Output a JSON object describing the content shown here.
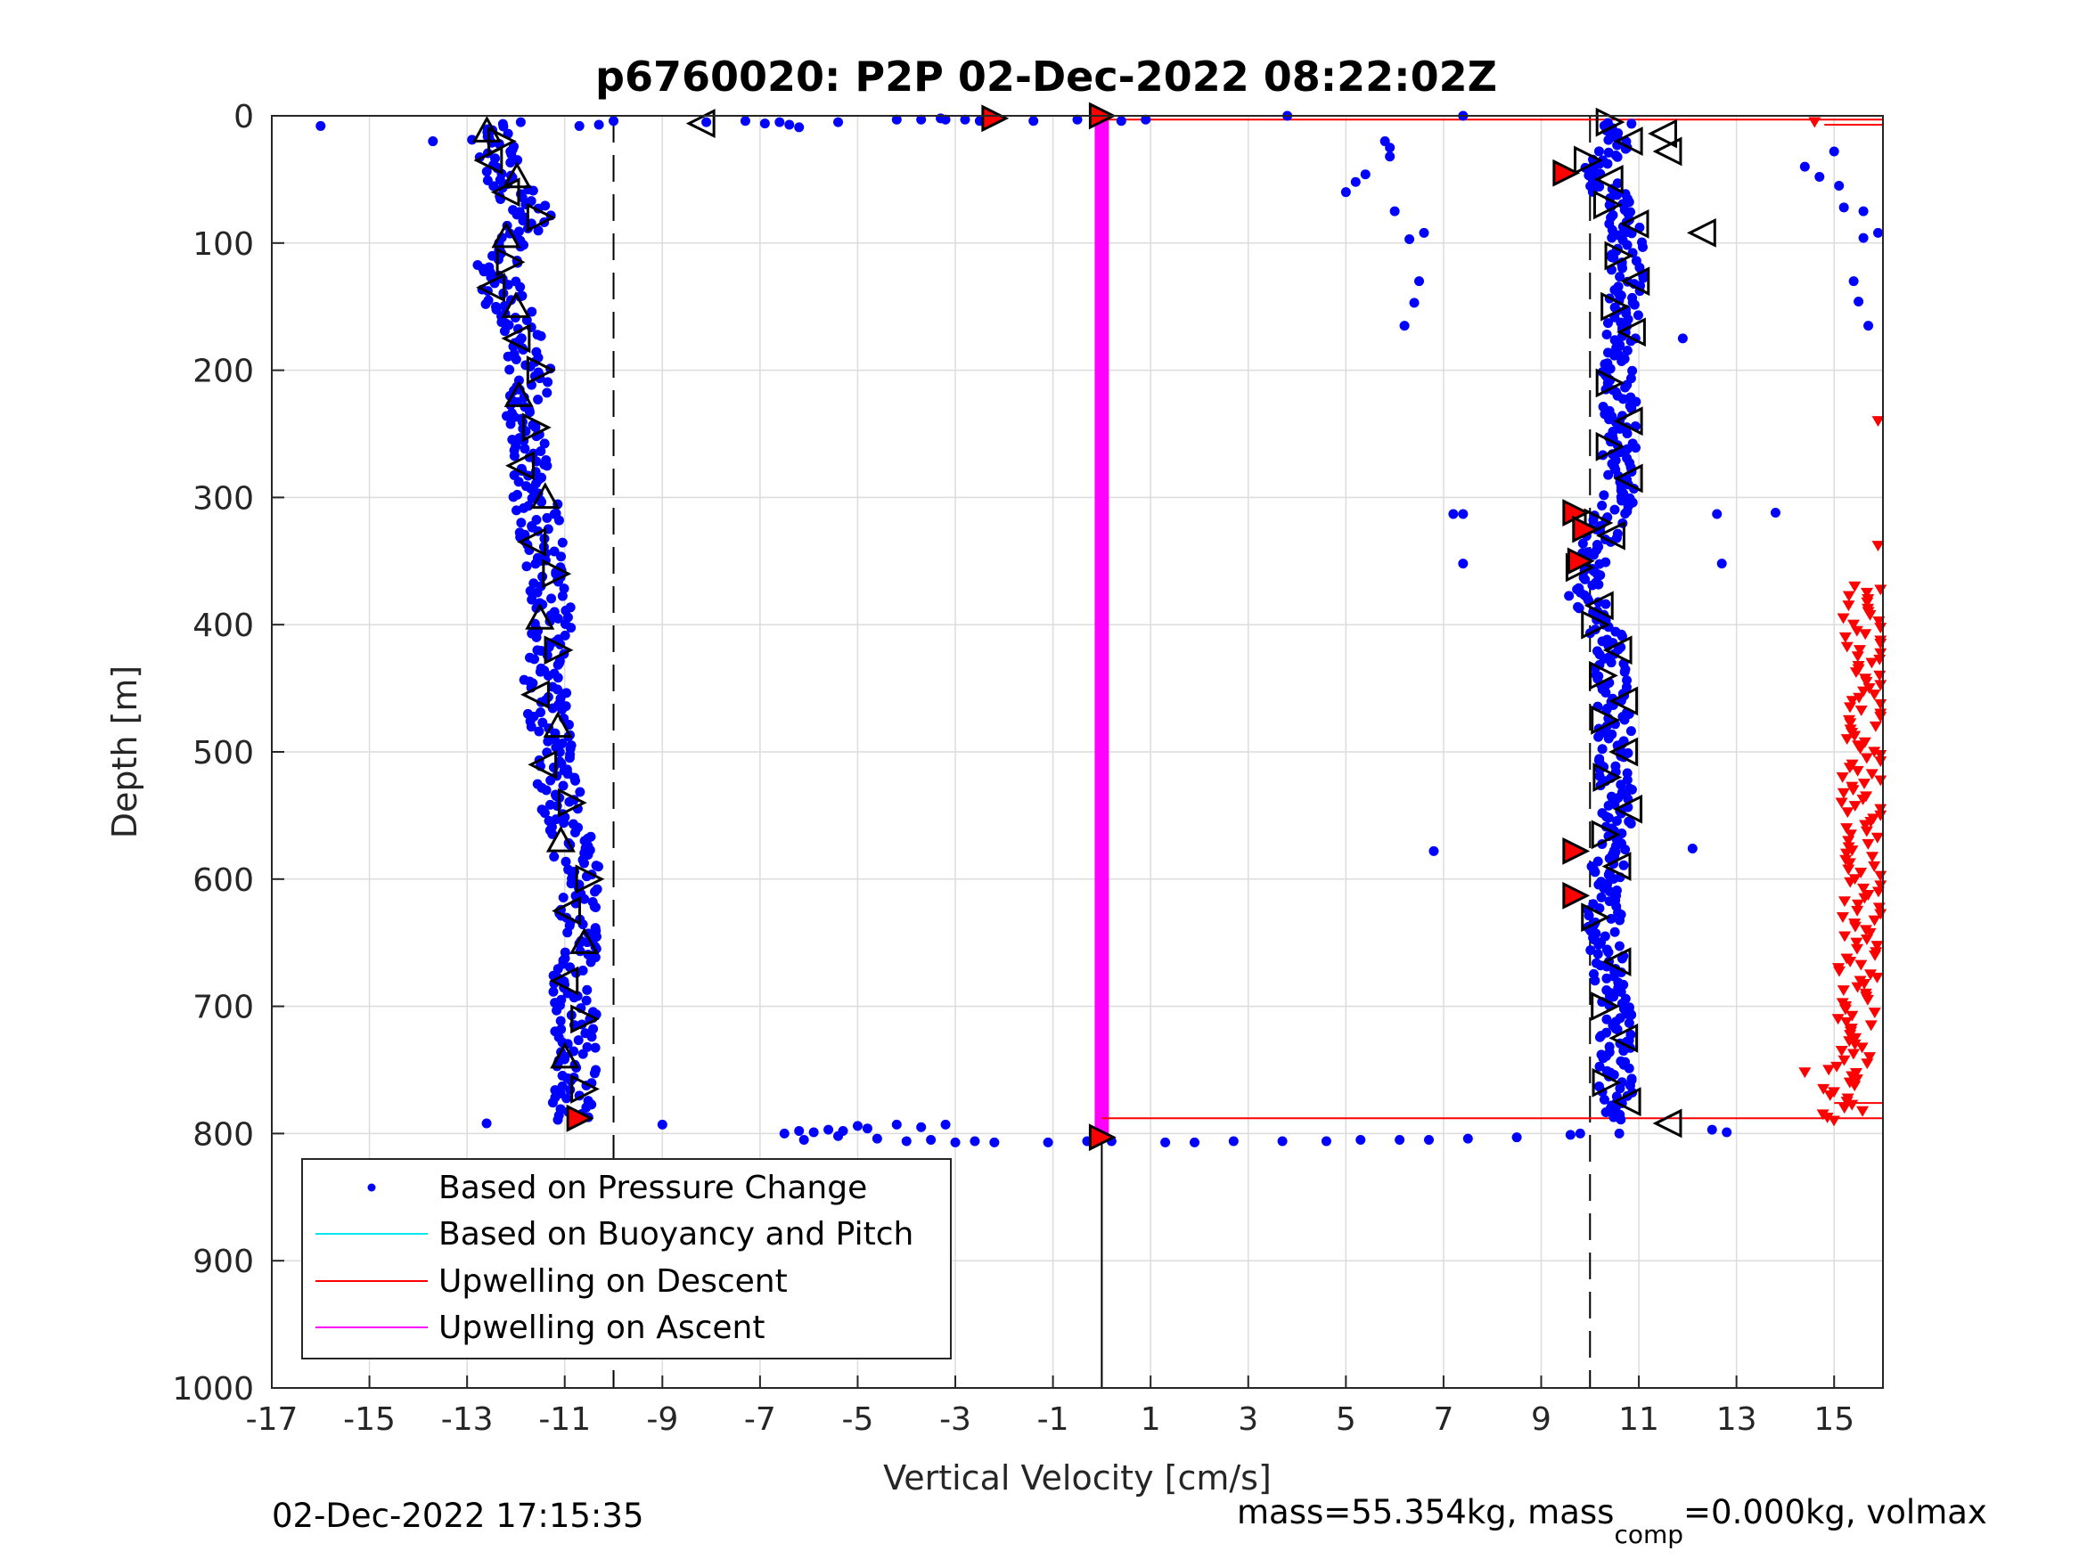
{
  "chart_data": {
    "type": "scatter",
    "title": "p6760020: P2P 02-Dec-2022 08:22:02Z",
    "xlabel": "Vertical Velocity [cm/s]",
    "ylabel": "Depth [m]",
    "xlim": [
      -17,
      16
    ],
    "ylim": [
      0,
      1000
    ],
    "y_reversed": true,
    "grid": true,
    "xticks": [
      -17,
      -15,
      -13,
      -11,
      -9,
      -7,
      -5,
      -3,
      -1,
      1,
      3,
      5,
      7,
      9,
      11,
      13,
      15
    ],
    "yticks": [
      0,
      100,
      200,
      300,
      400,
      500,
      600,
      700,
      800,
      900,
      1000
    ],
    "legend_position": "bottom-left",
    "reference_lines": [
      {
        "type": "vertical",
        "x": -10,
        "style": "dashed",
        "y_range": [
          0,
          1000
        ]
      },
      {
        "type": "vertical",
        "x": 10,
        "style": "dashed",
        "y_range": [
          0,
          1000
        ]
      },
      {
        "type": "vertical",
        "x": 0,
        "style": "solid",
        "y_range": [
          800,
          1000
        ]
      }
    ],
    "series": [
      {
        "name": "Based on Pressure Change",
        "marker": "dot",
        "color": "#0000ff",
        "profiles": [
          {
            "description_key": "descent",
            "center": [
              [
                5,
                -12.3
              ],
              [
                20,
                -12.5
              ],
              [
                40,
                -12.3
              ],
              [
                60,
                -12.0
              ],
              [
                80,
                -11.7
              ],
              [
                100,
                -12.1
              ],
              [
                120,
                -12.4
              ],
              [
                150,
                -12.2
              ],
              [
                170,
                -11.8
              ],
              [
                200,
                -11.7
              ],
              [
                250,
                -11.8
              ],
              [
                300,
                -11.6
              ],
              [
                350,
                -11.4
              ],
              [
                400,
                -11.3
              ],
              [
                450,
                -11.4
              ],
              [
                500,
                -11.3
              ],
              [
                550,
                -11.0
              ],
              [
                600,
                -10.7
              ],
              [
                650,
                -10.8
              ],
              [
                700,
                -10.8
              ],
              [
                750,
                -10.8
              ],
              [
                790,
                -10.8
              ]
            ],
            "spread": 0.45
          },
          {
            "description_key": "ascent",
            "center": [
              [
                5,
                10.6
              ],
              [
                20,
                10.6
              ],
              [
                40,
                10.0
              ],
              [
                60,
                10.4
              ],
              [
                80,
                10.7
              ],
              [
                100,
                10.8
              ],
              [
                150,
                10.7
              ],
              [
                200,
                10.6
              ],
              [
                250,
                10.6
              ],
              [
                300,
                10.6
              ],
              [
                350,
                10.0
              ],
              [
                380,
                9.9
              ],
              [
                400,
                10.3
              ],
              [
                450,
                10.5
              ],
              [
                500,
                10.5
              ],
              [
                550,
                10.6
              ],
              [
                600,
                10.3
              ],
              [
                650,
                10.3
              ],
              [
                700,
                10.5
              ],
              [
                750,
                10.5
              ],
              [
                790,
                10.6
              ]
            ],
            "spread": 0.35
          }
        ],
        "scattered_points": [
          [
            -16.0,
            8
          ],
          [
            -13.7,
            20
          ],
          [
            -12.6,
            792
          ],
          [
            -9.0,
            793
          ],
          [
            -10.7,
            8
          ],
          [
            -10.3,
            7
          ],
          [
            -10.0,
            4
          ],
          [
            -8.1,
            5
          ],
          [
            -7.3,
            4
          ],
          [
            -6.9,
            6
          ],
          [
            -6.6,
            5
          ],
          [
            -6.4,
            7
          ],
          [
            -6.2,
            9
          ],
          [
            -5.4,
            5
          ],
          [
            -4.2,
            3
          ],
          [
            -3.7,
            3
          ],
          [
            -3.3,
            2
          ],
          [
            -3.2,
            3
          ],
          [
            -2.8,
            3
          ],
          [
            -2.5,
            4
          ],
          [
            -1.4,
            4
          ],
          [
            -0.5,
            3
          ],
          [
            0.4,
            4
          ],
          [
            0.9,
            3
          ],
          [
            3.8,
            0
          ],
          [
            7.4,
            0
          ],
          [
            5.8,
            20
          ],
          [
            5.9,
            25
          ],
          [
            5.9,
            32
          ],
          [
            5.4,
            46
          ],
          [
            5.2,
            52
          ],
          [
            5.0,
            60
          ],
          [
            6.0,
            75
          ],
          [
            6.6,
            92
          ],
          [
            6.3,
            97
          ],
          [
            6.5,
            130
          ],
          [
            6.4,
            147
          ],
          [
            6.2,
            165
          ],
          [
            7.2,
            313
          ],
          [
            7.4,
            313
          ],
          [
            7.4,
            352
          ],
          [
            6.8,
            578
          ],
          [
            12.1,
            576
          ],
          [
            12.6,
            313
          ],
          [
            13.8,
            312
          ],
          [
            12.7,
            352
          ],
          [
            11.9,
            175
          ],
          [
            14.4,
            40
          ],
          [
            14.7,
            48
          ],
          [
            15.0,
            28
          ],
          [
            15.1,
            55
          ],
          [
            15.2,
            72
          ],
          [
            15.6,
            75
          ],
          [
            15.9,
            92
          ],
          [
            15.6,
            96
          ],
          [
            15.4,
            130
          ],
          [
            15.5,
            146
          ],
          [
            15.7,
            165
          ],
          [
            -6.5,
            800
          ],
          [
            -6.2,
            798
          ],
          [
            -5.9,
            799
          ],
          [
            -5.6,
            797
          ],
          [
            -5.3,
            798
          ],
          [
            -5.0,
            794
          ],
          [
            -4.8,
            796
          ],
          [
            -4.2,
            793
          ],
          [
            -3.7,
            795
          ],
          [
            -3.2,
            793
          ],
          [
            -6.1,
            805
          ],
          [
            -5.4,
            802
          ],
          [
            -4.6,
            804
          ],
          [
            -4.0,
            806
          ],
          [
            -3.5,
            805
          ],
          [
            -3.0,
            807
          ],
          [
            -2.6,
            806
          ],
          [
            -2.2,
            807
          ],
          [
            -1.1,
            807
          ],
          [
            -0.3,
            806
          ],
          [
            0.2,
            806
          ],
          [
            1.3,
            807
          ],
          [
            1.9,
            807
          ],
          [
            2.7,
            806
          ],
          [
            3.7,
            806
          ],
          [
            4.6,
            806
          ],
          [
            5.3,
            805
          ],
          [
            6.1,
            805
          ],
          [
            6.7,
            805
          ],
          [
            7.5,
            804
          ],
          [
            8.5,
            803
          ],
          [
            9.6,
            801
          ],
          [
            9.8,
            800
          ],
          [
            12.5,
            797
          ],
          [
            12.8,
            799
          ],
          [
            10.6,
            800
          ]
        ]
      },
      {
        "name": "Based on Buoyancy and Pitch",
        "marker": "line",
        "color": "#00e5ee",
        "points": []
      },
      {
        "name": "Upwelling on Descent",
        "marker": "line",
        "color": "#ff0000",
        "horizontal_lines": [
          {
            "y": 3,
            "x_range": [
              0,
              16
            ]
          },
          {
            "y": 7,
            "x_range": [
              14.8,
              16
            ]
          },
          {
            "y": 776,
            "x_range": [
              15.0,
              16
            ]
          },
          {
            "y": 788,
            "x_range": [
              0,
              16
            ]
          }
        ],
        "triangle_markers": {
          "marker": "triangle-down",
          "x_center_by_depth": [
            [
              5,
              14.6
            ],
            [
              240,
              15.9
            ],
            [
              340,
              15.9
            ],
            [
              370,
              15.8
            ],
            [
              400,
              15.6
            ],
            [
              450,
              15.8
            ],
            [
              500,
              15.6
            ],
            [
              550,
              15.6
            ],
            [
              600,
              15.7
            ],
            [
              650,
              15.5
            ],
            [
              700,
              15.4
            ],
            [
              750,
              15.3
            ],
            [
              790,
              15.1
            ]
          ],
          "depth_range": [
            370,
            790
          ],
          "spread": 0.45
        }
      },
      {
        "name": "Upwelling on Ascent",
        "marker": "line",
        "color": "#ff00ff",
        "band": {
          "x": 0,
          "depth_range": [
            0,
            800
          ]
        }
      }
    ],
    "open_triangle_markers": {
      "color": "#000000",
      "left_profile_depths": [
        12,
        20,
        35,
        48,
        60,
        80,
        95,
        115,
        135,
        150,
        175,
        200,
        220,
        245,
        275,
        300,
        335,
        360,
        395,
        420,
        455,
        480,
        510,
        540,
        570,
        600,
        625,
        650,
        680,
        710,
        740,
        765
      ],
      "right_profile_depths": [
        5,
        20,
        35,
        50,
        70,
        85,
        110,
        130,
        150,
        170,
        210,
        240,
        260,
        285,
        320,
        330,
        355,
        385,
        400,
        420,
        440,
        460,
        475,
        500,
        520,
        545,
        565,
        590,
        630,
        665,
        700,
        725,
        760,
        775
      ],
      "extra": [
        [
          -8.2,
          6
        ],
        [
          12.3,
          92
        ],
        [
          11.5,
          14
        ],
        [
          11.6,
          28
        ],
        [
          11.6,
          792
        ]
      ]
    },
    "filled_red_triangle_markers": [
      [
        -2.2,
        2
      ],
      [
        0.0,
        0
      ],
      [
        9.5,
        45
      ],
      [
        9.7,
        312
      ],
      [
        9.9,
        325
      ],
      [
        9.8,
        350
      ],
      [
        9.7,
        578
      ],
      [
        9.7,
        613
      ],
      [
        -10.7,
        788
      ],
      [
        0.0,
        803
      ]
    ]
  },
  "footer": {
    "timestamp": "02-Dec-2022 17:15:35",
    "mass_text_1": "mass=55.354kg, mass",
    "mass_subscript": "comp",
    "mass_text_2": "=0.000kg, volmax"
  },
  "colors": {
    "pressure": "#0000ff",
    "buoyancy": "#00e5ee",
    "descent": "#ff0000",
    "ascent": "#ff00ff",
    "axis": "#262626",
    "grid": "#dcdcdc"
  }
}
